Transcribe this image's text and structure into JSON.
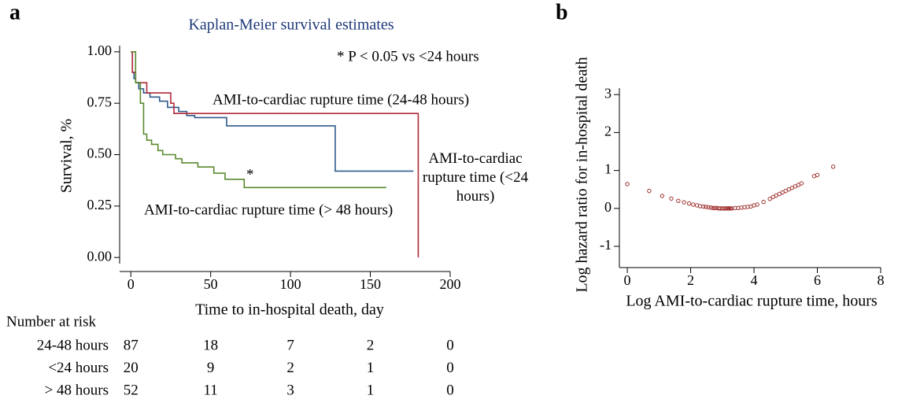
{
  "chart_data": [
    {
      "type": "step",
      "panel_label": "a",
      "title": "Kaplan-Meier survival estimates",
      "xlabel": "Time to in-hospital death, day",
      "ylabel": "Survival, %",
      "annotation": "* P < 0.05 vs <24 hours",
      "marker_text": "*",
      "xlim": [
        -7,
        200
      ],
      "xticks": [
        0,
        50,
        100,
        150,
        200
      ],
      "ylim": [
        -0.03,
        1.03
      ],
      "yticks": [
        {
          "value": 0,
          "label": "0.00"
        },
        0.25,
        {
          "value": 0.5,
          "label": "0.50"
        },
        0.75,
        {
          "value": 1,
          "label": "1.00"
        }
      ],
      "series": [
        {
          "name": "AMI-to-cardiac rupture time (24-48 hours)",
          "color": "#2e5a8a",
          "x": [
            0,
            1,
            2,
            3,
            5,
            8,
            12,
            18,
            23,
            30,
            35,
            40,
            60,
            128,
            177
          ],
          "values": [
            1,
            0.9,
            0.87,
            0.85,
            0.82,
            0.8,
            0.78,
            0.76,
            0.73,
            0.71,
            0.69,
            0.68,
            0.64,
            0.42,
            0.42
          ]
        },
        {
          "name": "AMI-to-cardiac rupture time (<24 hours)",
          "color": "#b22a3a",
          "x": [
            0,
            1,
            3,
            10,
            25,
            27,
            180,
            180
          ],
          "values": [
            1,
            0.9,
            0.85,
            0.8,
            0.75,
            0.7,
            0.7,
            0
          ]
        },
        {
          "name": "AMI-to-cardiac rupture time (> 48 hours)",
          "color": "#5a8a2e",
          "x": [
            0,
            3,
            6,
            8,
            10,
            13,
            17,
            20,
            28,
            32,
            42,
            52,
            59,
            71,
            160
          ],
          "values": [
            1,
            0.85,
            0.75,
            0.6,
            0.57,
            0.55,
            0.52,
            0.5,
            0.48,
            0.46,
            0.44,
            0.41,
            0.38,
            0.34,
            0.34
          ]
        }
      ],
      "risk_table": {
        "title": "Number at risk",
        "rows": [
          {
            "name": "24-48 hours",
            "counts": [
              87,
              18,
              7,
              2,
              0
            ]
          },
          {
            "name": "<24 hours",
            "counts": [
              20,
              9,
              2,
              1,
              0
            ]
          },
          {
            "name": "> 48 hours",
            "counts": [
              52,
              11,
              3,
              1,
              0
            ]
          }
        ]
      }
    },
    {
      "type": "scatter",
      "panel_label": "b",
      "xlabel": "Log AMI-to-cardiac rupture time, hours",
      "ylabel": "Log hazard ratio for in-hospital death",
      "color": "#a03030",
      "xlim": [
        -0.25,
        8
      ],
      "xticks": [
        0,
        2,
        4,
        6,
        8
      ],
      "ylim": [
        -1.56,
        3.17
      ],
      "yticks": [
        -1,
        0,
        1,
        2,
        3
      ],
      "x": [
        0,
        0.69,
        1.1,
        1.39,
        1.61,
        1.79,
        1.95,
        2.08,
        2.2,
        2.3,
        2.4,
        2.48,
        2.56,
        2.64,
        2.71,
        2.77,
        2.83,
        2.89,
        2.94,
        3.0,
        3.04,
        3.09,
        3.14,
        3.18,
        3.22,
        3.26,
        3.3,
        3.4,
        3.5,
        3.6,
        3.7,
        3.8,
        3.9,
        4.0,
        4.1,
        4.3,
        4.5,
        4.6,
        4.7,
        4.8,
        4.9,
        5.0,
        5.1,
        5.2,
        5.3,
        5.4,
        5.5,
        5.9,
        6.0,
        6.5
      ],
      "values": [
        0.64,
        0.46,
        0.33,
        0.26,
        0.2,
        0.16,
        0.13,
        0.1,
        0.08,
        0.06,
        0.05,
        0.04,
        0.03,
        0.02,
        0.01,
        0.01,
        0.01,
        0,
        0,
        0,
        0,
        0,
        0,
        0,
        0,
        0,
        0,
        0.01,
        0.01,
        0.02,
        0.03,
        0.04,
        0.05,
        0.08,
        0.1,
        0.17,
        0.25,
        0.3,
        0.34,
        0.38,
        0.42,
        0.46,
        0.5,
        0.54,
        0.58,
        0.62,
        0.66,
        0.85,
        0.88,
        1.1
      ]
    }
  ]
}
